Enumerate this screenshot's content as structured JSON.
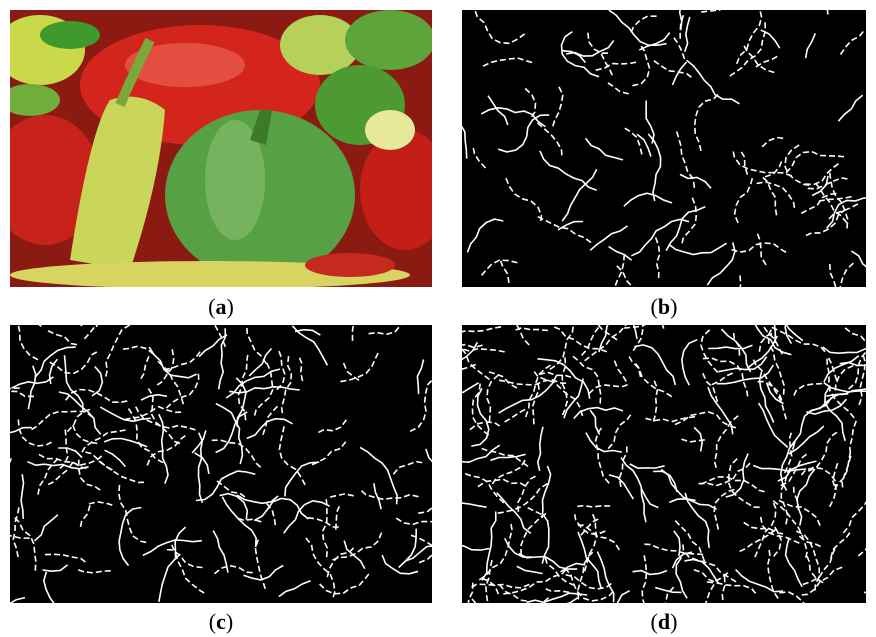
{
  "panels": [
    {
      "caption": [
        "(",
        "a",
        ")"
      ]
    },
    {
      "caption": [
        "(",
        "b",
        ")"
      ]
    },
    {
      "caption": [
        "(",
        "c",
        ")"
      ]
    },
    {
      "caption": [
        "(",
        "d",
        ")"
      ]
    }
  ]
}
